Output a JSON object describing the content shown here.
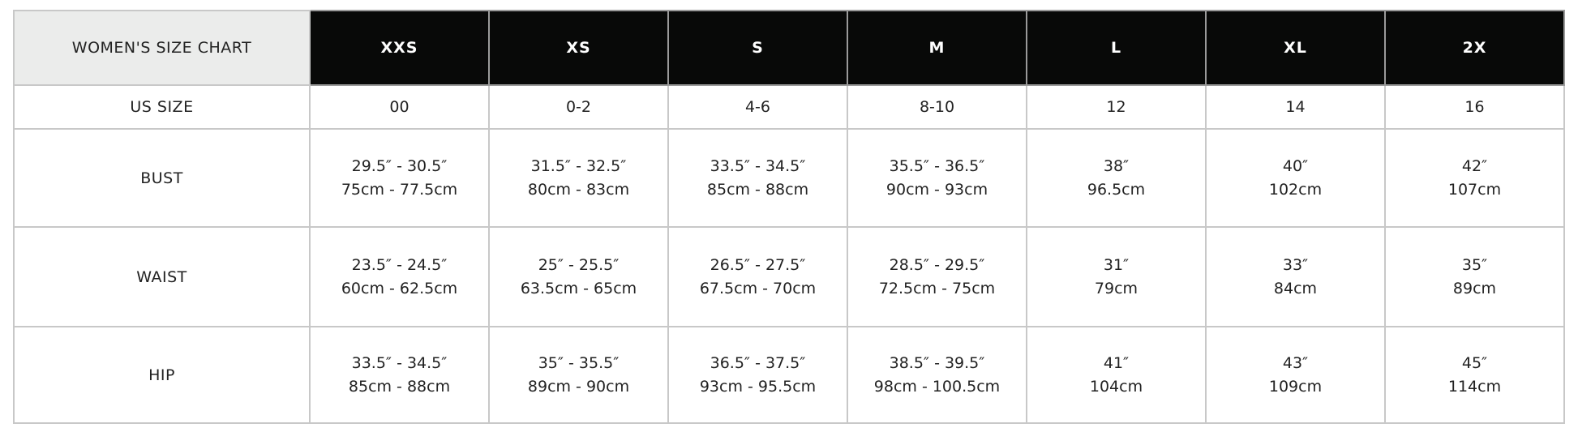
{
  "chart_title": "WOMEN'S SIZE CHART",
  "sizes": [
    "XXS",
    "XS",
    "S",
    "M",
    "L",
    "XL",
    "2X"
  ],
  "rows": [
    {
      "label": "US SIZE",
      "values": [
        [
          "00"
        ],
        [
          "0-2"
        ],
        [
          "4-6"
        ],
        [
          "8-10"
        ],
        [
          "12"
        ],
        [
          "14"
        ],
        [
          "16"
        ]
      ]
    },
    {
      "label": "BUST",
      "values": [
        [
          "29.5″ - 30.5″",
          "75cm - 77.5cm"
        ],
        [
          "31.5″ - 32.5″",
          "80cm - 83cm"
        ],
        [
          "33.5″ - 34.5″",
          "85cm - 88cm"
        ],
        [
          "35.5″ - 36.5″",
          "90cm - 93cm"
        ],
        [
          "38″",
          "96.5cm"
        ],
        [
          "40″",
          "102cm"
        ],
        [
          "42″",
          "107cm"
        ]
      ]
    },
    {
      "label": "WAIST",
      "values": [
        [
          "23.5″ - 24.5″",
          "60cm - 62.5cm"
        ],
        [
          "25″ - 25.5″",
          "63.5cm - 65cm"
        ],
        [
          "26.5″ - 27.5″",
          "67.5cm - 70cm"
        ],
        [
          "28.5″ - 29.5″",
          "72.5cm - 75cm"
        ],
        [
          "31″",
          "79cm"
        ],
        [
          "33″",
          "84cm"
        ],
        [
          "35″",
          "89cm"
        ]
      ]
    },
    {
      "label": "HIP",
      "values": [
        [
          "33.5″ - 34.5″",
          "85cm - 88cm"
        ],
        [
          "35″ - 35.5″",
          "89cm - 90cm"
        ],
        [
          "36.5″ - 37.5″",
          "93cm - 95.5cm"
        ],
        [
          "38.5″ - 39.5″",
          "98cm - 100.5cm"
        ],
        [
          "41″",
          "104cm"
        ],
        [
          "43″",
          "109cm"
        ],
        [
          "45″",
          "114cm"
        ]
      ]
    }
  ],
  "colors": {
    "header_bg": "#080908",
    "title_bg": "#ebeceb",
    "border": "#c8c8c8"
  }
}
